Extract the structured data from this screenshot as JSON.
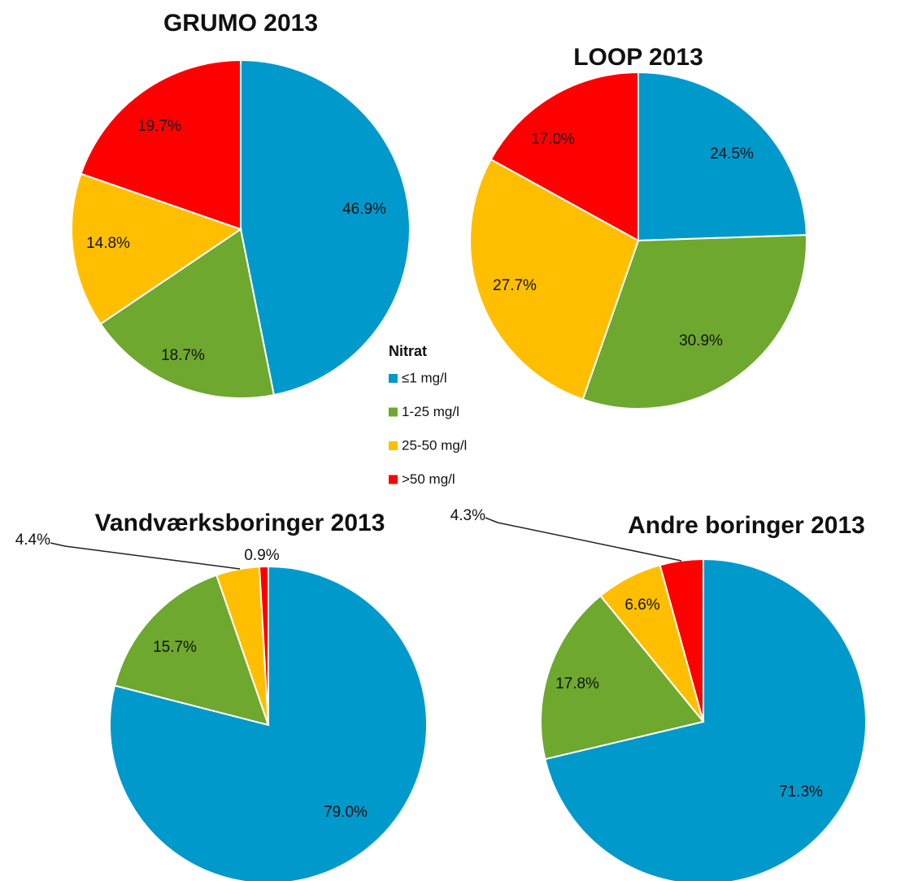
{
  "legend": {
    "title": "Nitrat",
    "categories": [
      "≤1 mg/l",
      "1-25 mg/l",
      "25-50 mg/l",
      ">50 mg/l"
    ],
    "colors": [
      "#0099cc",
      "#6ea82f",
      "#ffbf00",
      "#ff0000"
    ]
  },
  "chart_data": [
    {
      "type": "pie",
      "title": "GRUMO 2013",
      "values": [
        46.9,
        18.7,
        14.8,
        19.7
      ],
      "value_labels": [
        "46.9%",
        "18.7%",
        "14.8%",
        "19.7%"
      ]
    },
    {
      "type": "pie",
      "title": "LOOP 2013",
      "values": [
        24.5,
        30.9,
        27.7,
        17.0
      ],
      "value_labels": [
        "24.5%",
        "30.9%",
        "27.7%",
        "17.0%"
      ]
    },
    {
      "type": "pie",
      "title": "Vandværksboringer 2013",
      "values": [
        79.0,
        15.7,
        4.4,
        0.9
      ],
      "value_labels": [
        "79.0%",
        "15.7%",
        "4.4%",
        "0.9%"
      ]
    },
    {
      "type": "pie",
      "title": "Andre boringer 2013",
      "values": [
        71.3,
        17.8,
        6.6,
        4.3
      ],
      "value_labels": [
        "71.3%",
        "17.8%",
        "6.6%",
        "4.3%"
      ]
    }
  ]
}
